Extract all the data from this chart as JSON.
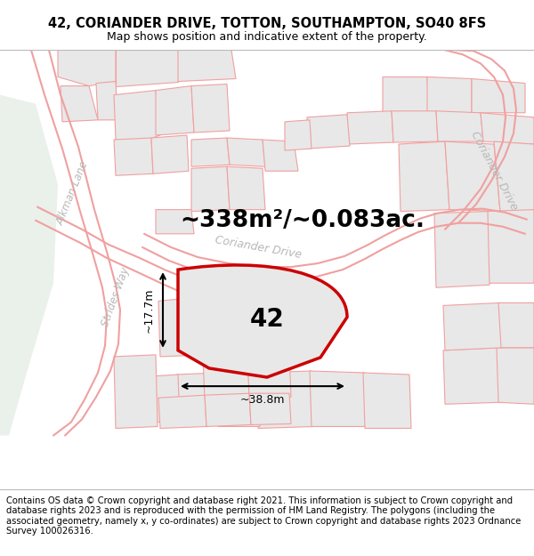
{
  "title_line1": "42, CORIANDER DRIVE, TOTTON, SOUTHAMPTON, SO40 8FS",
  "title_line2": "Map shows position and indicative extent of the property.",
  "footer_text": "Contains OS data © Crown copyright and database right 2021. This information is subject to Crown copyright and database rights 2023 and is reproduced with the permission of HM Land Registry. The polygons (including the associated geometry, namely x, y co-ordinates) are subject to Crown copyright and database rights 2023 Ordnance Survey 100026316.",
  "area_text": "~338m²/~0.083ac.",
  "width_label": "~38.8m",
  "height_label": "~17.7m",
  "house_number": "42",
  "bg_color": "#ffffff",
  "map_bg": "#ffffff",
  "parcel_fill": "#e8e8e8",
  "parcel_edge": "#f0a0a0",
  "road_edge": "#f0a0a0",
  "highlight_edge": "#cc0000",
  "highlight_fill": "#e8e8e8",
  "green_fill": "#eaf0ea",
  "road_label_color": "#b8b8b8",
  "title_fontsize": 10.5,
  "subtitle_fontsize": 9.0,
  "area_fontsize": 19,
  "footer_fontsize": 7.2,
  "dim_label_fontsize": 9,
  "number_fontsize": 20,
  "road_fontsize": 8.5
}
